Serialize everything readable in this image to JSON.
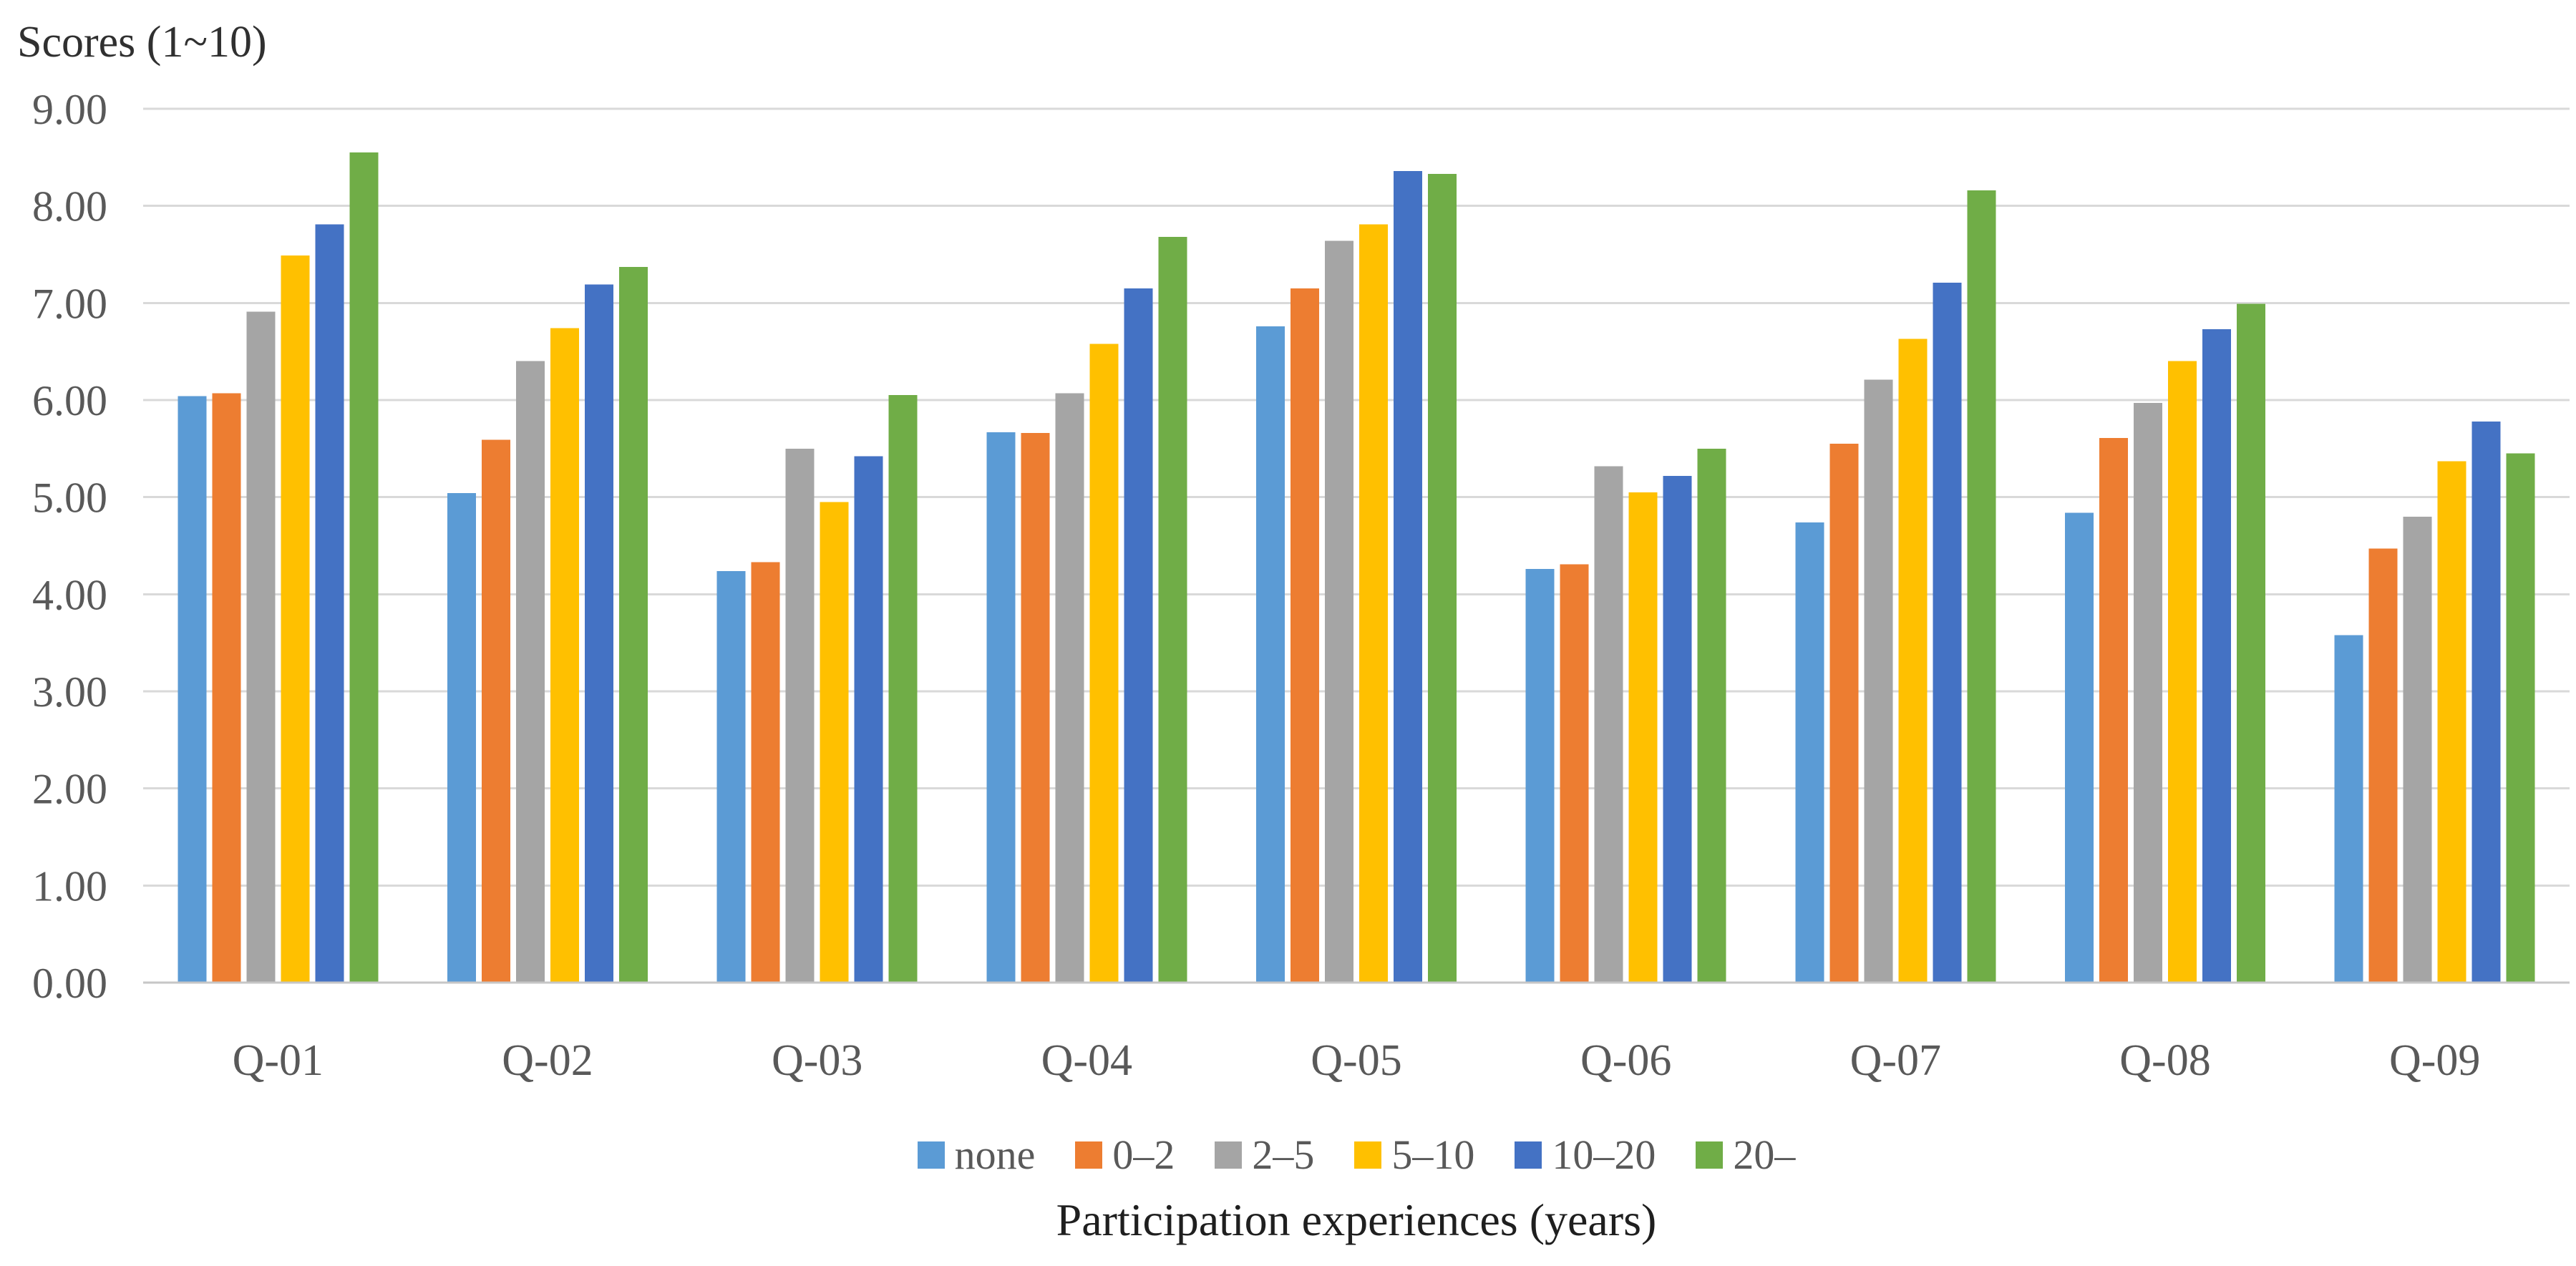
{
  "figure_title": "Scores (1~10)",
  "chart_data": {
    "type": "bar",
    "title": "Scores (1~10)",
    "xlabel": "Participation experiences (years)",
    "ylabel": "Scores (1~10)",
    "ylim": [
      0,
      9
    ],
    "ytick_step": 1,
    "ytick_labels": [
      "0.00",
      "1.00",
      "2.00",
      "3.00",
      "4.00",
      "5.00",
      "6.00",
      "7.00",
      "8.00",
      "9.00"
    ],
    "grid": true,
    "legend_position": "bottom",
    "categories": [
      "Q-01",
      "Q-02",
      "Q-03",
      "Q-04",
      "Q-05",
      "Q-06",
      "Q-07",
      "Q-08",
      "Q-09"
    ],
    "series": [
      {
        "name": "none",
        "color": "#5B9BD5",
        "values": [
          6.04,
          5.04,
          4.24,
          5.67,
          6.76,
          4.26,
          4.74,
          4.84,
          3.58
        ]
      },
      {
        "name": "0–2",
        "color": "#ED7D31",
        "values": [
          6.07,
          5.59,
          4.33,
          5.66,
          7.15,
          4.31,
          5.55,
          5.61,
          4.47
        ]
      },
      {
        "name": "2–5",
        "color": "#A5A5A5",
        "values": [
          6.91,
          6.4,
          5.5,
          6.07,
          7.64,
          5.32,
          6.21,
          5.97,
          4.8
        ]
      },
      {
        "name": "5–10",
        "color": "#FFC000",
        "values": [
          7.49,
          6.74,
          4.95,
          6.58,
          7.81,
          5.05,
          6.63,
          6.4,
          5.37
        ]
      },
      {
        "name": "10–20",
        "color": "#4472C4",
        "values": [
          7.81,
          7.19,
          5.42,
          7.15,
          8.36,
          5.22,
          7.21,
          6.73,
          5.78
        ]
      },
      {
        "name": "20–",
        "color": "#70AD47",
        "values": [
          8.55,
          7.37,
          6.05,
          7.68,
          8.33,
          5.5,
          8.16,
          6.99,
          5.45
        ]
      }
    ]
  },
  "style_colors": {
    "gridline": "#D9D9D9",
    "baseline": "#C6C6C6",
    "tick_text": "#595959",
    "category_text": "#595959",
    "legend_text": "#595959",
    "title_text": "#303030",
    "xlabel_text": "#1f1f1f"
  }
}
